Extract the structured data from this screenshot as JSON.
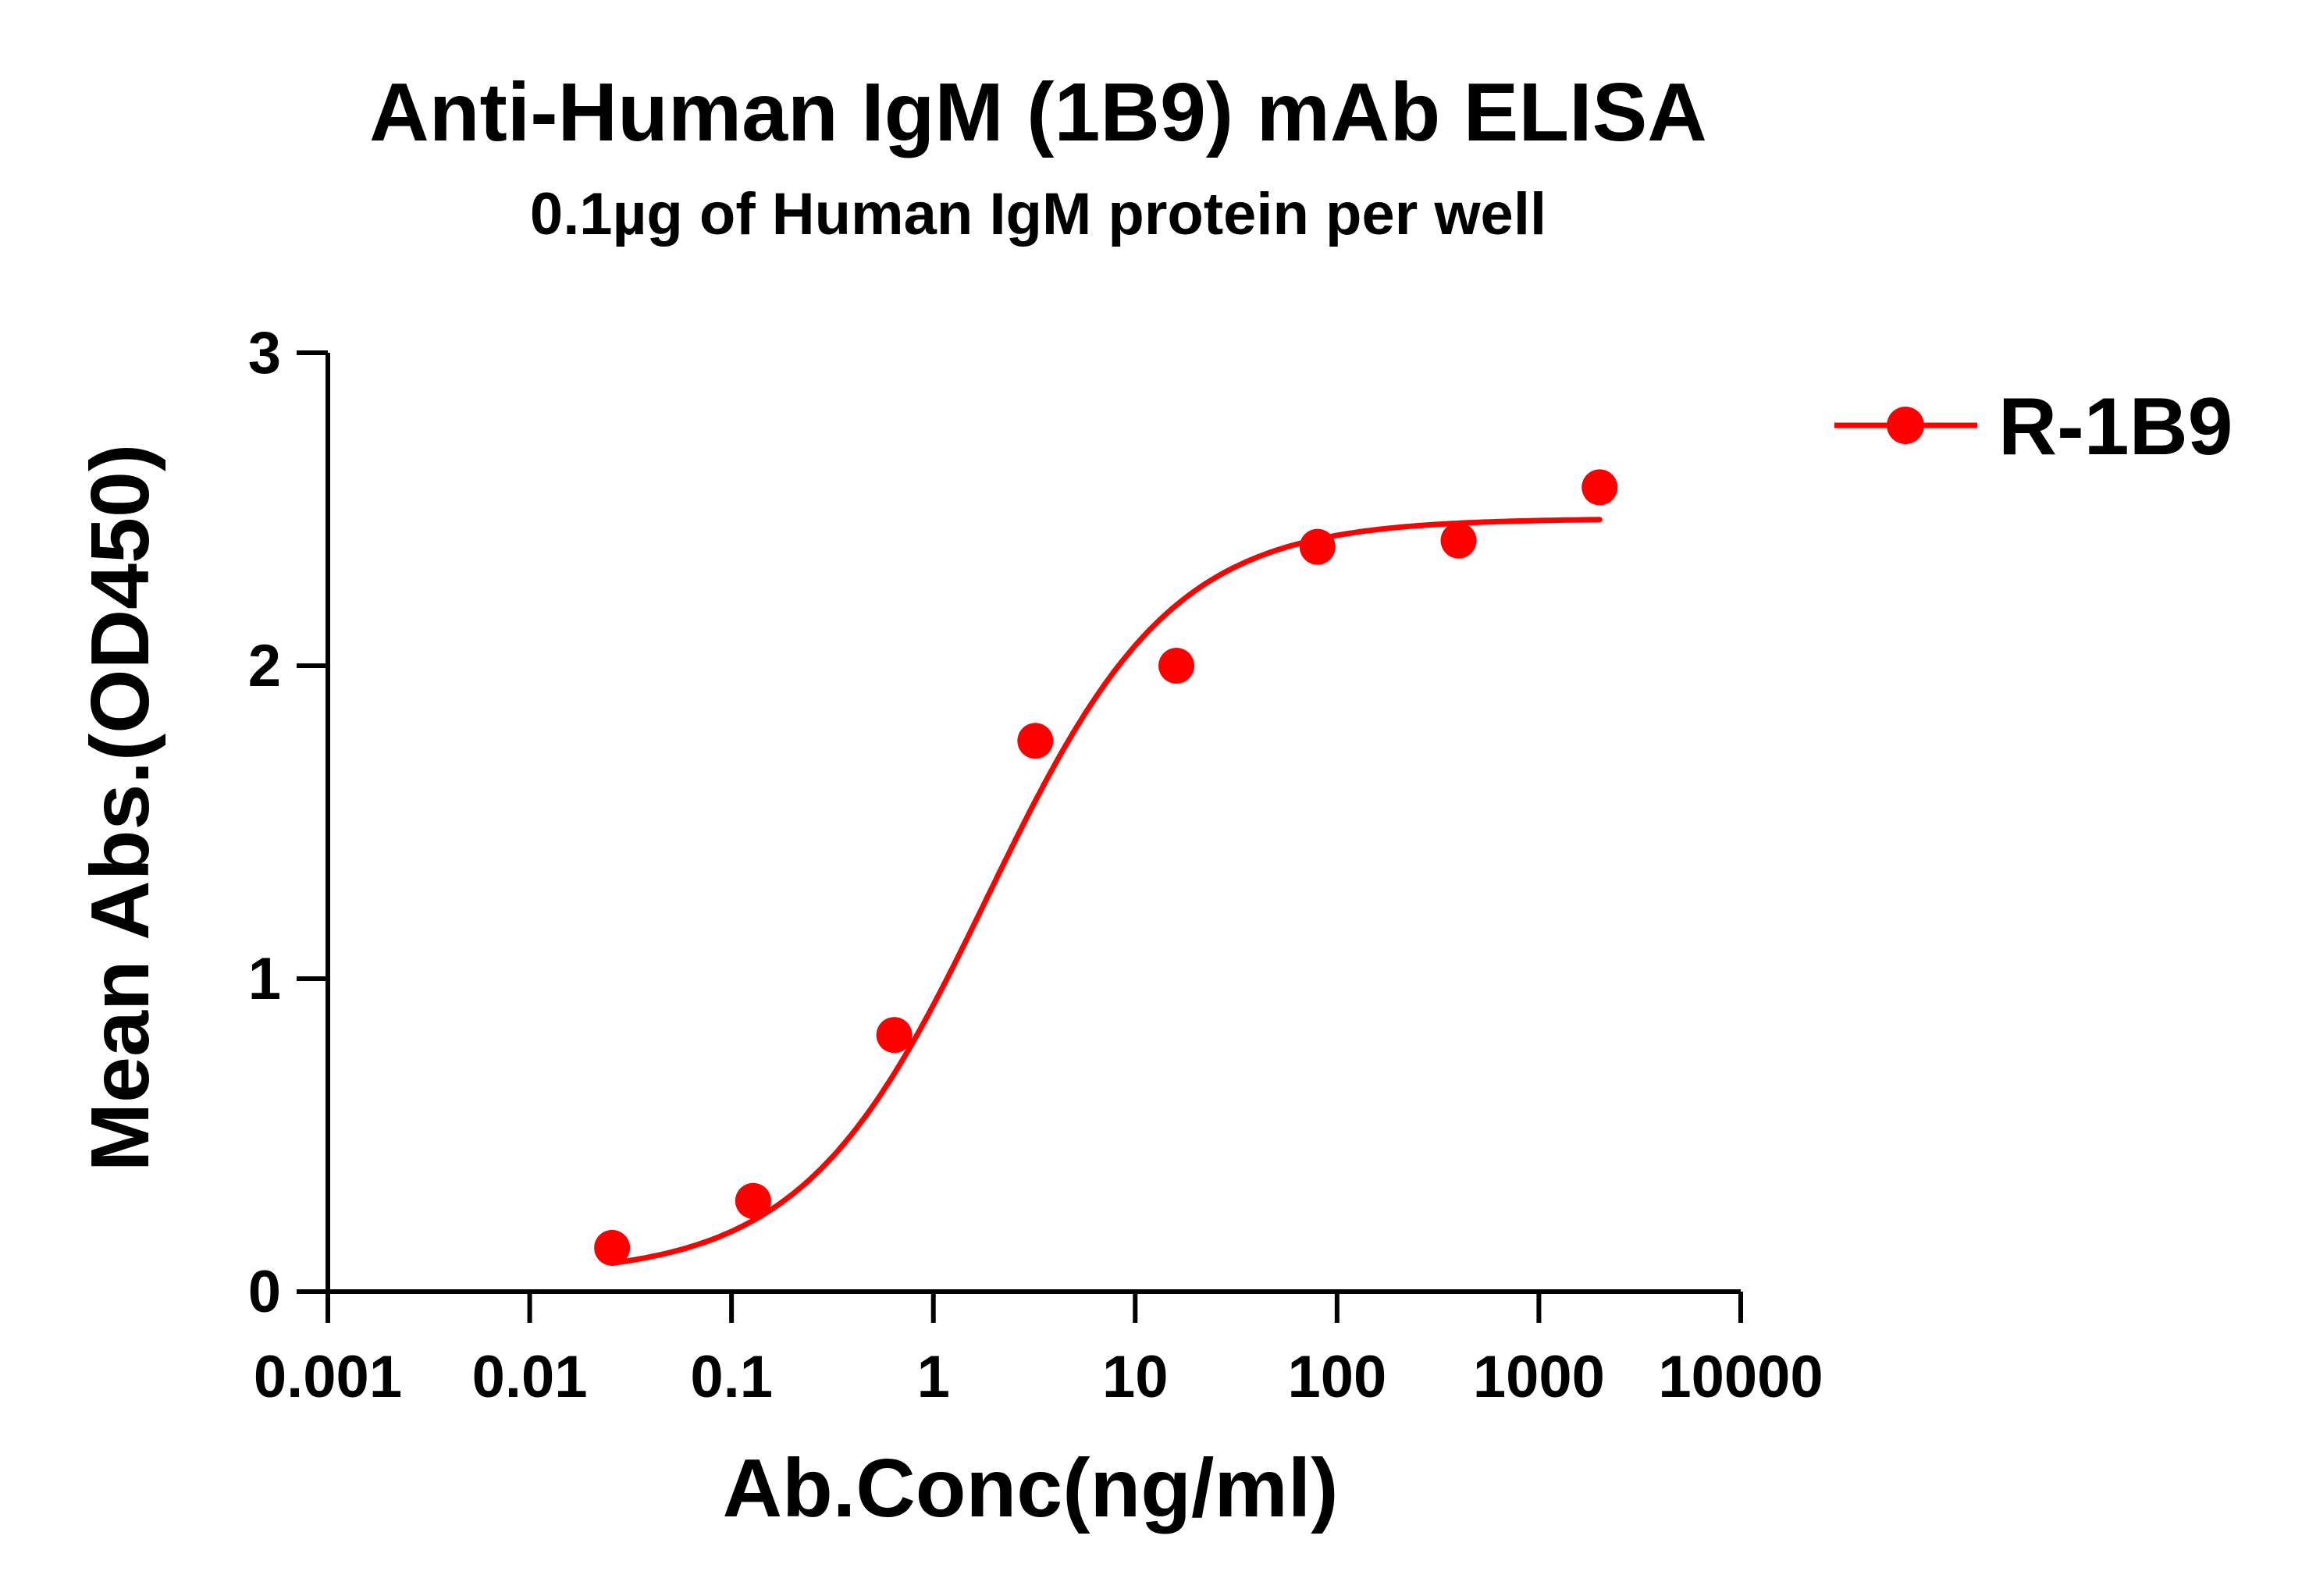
{
  "chart_data": {
    "type": "scatter",
    "title": "Anti-Human IgM (1B9) mAb ELISA",
    "subtitle": "0.1µg of Human IgM protein per well",
    "xlabel": "Ab.Conc(ng/ml)",
    "ylabel": "Mean Abs.(OD450)",
    "x_scale": "log",
    "xlim": [
      0.001,
      10000
    ],
    "ylim": [
      0,
      3
    ],
    "x_ticks": [
      0.001,
      0.01,
      0.1,
      1,
      10,
      100,
      1000,
      10000
    ],
    "x_tick_labels": [
      "0.001",
      "0.01",
      "0.1",
      "1",
      "10",
      "100",
      "1000",
      "10000"
    ],
    "y_ticks": [
      0,
      1,
      2,
      3
    ],
    "y_tick_labels": [
      "0",
      "1",
      "2",
      "3"
    ],
    "grid": false,
    "legend_position": "top-right",
    "series": [
      {
        "name": "R-1B9",
        "color": "#ff0000",
        "x": [
          0.0256,
          0.128,
          0.64,
          3.2,
          16,
          80,
          400,
          2000
        ],
        "y": [
          0.14,
          0.29,
          0.82,
          1.76,
          2.0,
          2.38,
          2.4,
          2.57
        ],
        "fit": {
          "kind": "4PL sigmoid fit",
          "x_range": [
            0.0256,
            2000
          ],
          "bottom": 0.05,
          "top": 2.47,
          "ec50": 1.85,
          "hill": 0.95
        }
      }
    ]
  }
}
